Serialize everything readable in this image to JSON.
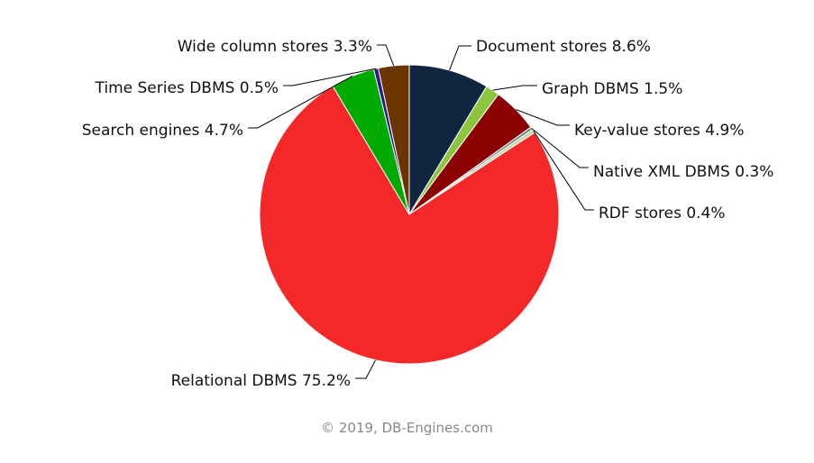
{
  "chart_data": {
    "type": "pie",
    "title": "",
    "slices": [
      {
        "label": "Document stores",
        "value": 8.6,
        "color": "#0f2540"
      },
      {
        "label": "Graph DBMS",
        "value": 1.5,
        "color": "#8cc63f"
      },
      {
        "label": "Key-value stores",
        "value": 4.9,
        "color": "#8b0000"
      },
      {
        "label": "Native XML DBMS",
        "value": 0.3,
        "color": "#6b7b8b"
      },
      {
        "label": "RDF stores",
        "value": 0.4,
        "color": "#c8d8a8"
      },
      {
        "label": "Relational DBMS",
        "value": 75.2,
        "color": "#f42828"
      },
      {
        "label": "Search engines",
        "value": 4.7,
        "color": "#00aa00"
      },
      {
        "label": "Time Series DBMS",
        "value": 0.5,
        "color": "#2a1a8a"
      },
      {
        "label": "Wide column stores",
        "value": 3.3,
        "color": "#6b3500"
      }
    ]
  },
  "credit": "© 2019, DB-Engines.com"
}
